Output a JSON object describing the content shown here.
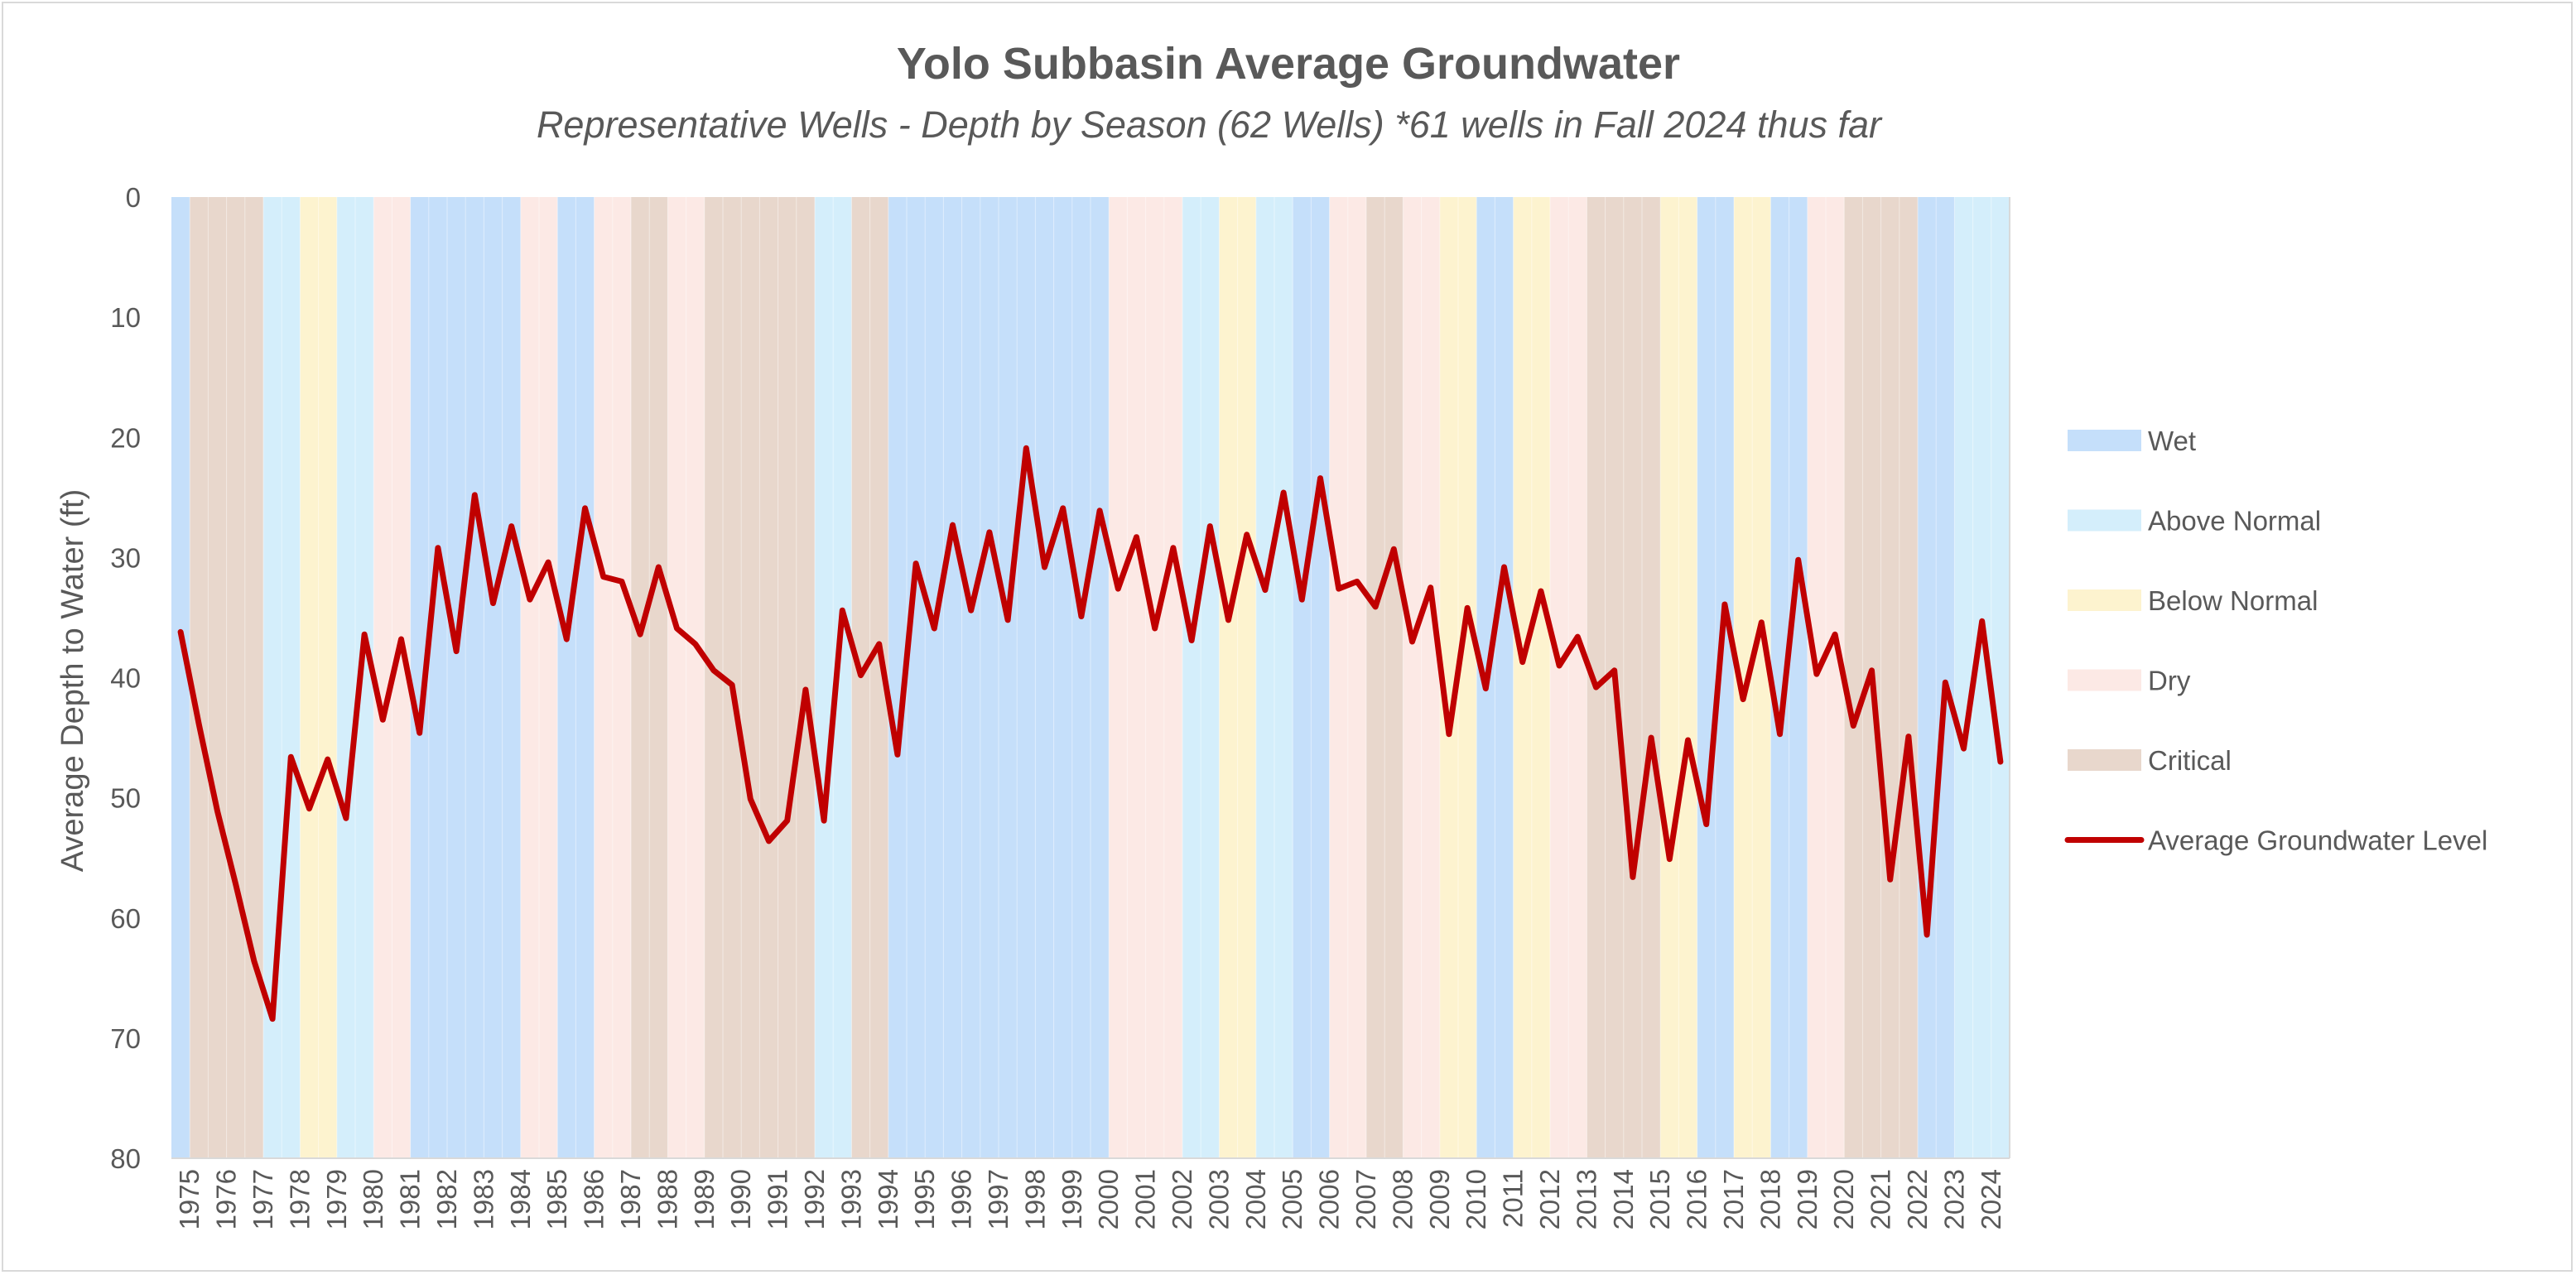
{
  "chart_data": {
    "type": "line",
    "title": "Yolo Subbasin Average Groundwater",
    "subtitle": "Representative Wells - Depth by Season (62 Wells) *61 wells in Fall 2024 thus far",
    "xlabel": "",
    "ylabel": "Average Depth to Water (ft)",
    "ylim": [
      0,
      80
    ],
    "y_inverted": true,
    "y_ticks": [
      0,
      10,
      20,
      30,
      40,
      50,
      60,
      70,
      80
    ],
    "x_tick_labels": [
      "1975",
      "1976",
      "1977",
      "1978",
      "1979",
      "1980",
      "1981",
      "1982",
      "1983",
      "1984",
      "1985",
      "1986",
      "1987",
      "1988",
      "1989",
      "1990",
      "1991",
      "1992",
      "1993",
      "1994",
      "1995",
      "1996",
      "1997",
      "1998",
      "1999",
      "2000",
      "2001",
      "2002",
      "2003",
      "2004",
      "2005",
      "2006",
      "2007",
      "2008",
      "2009",
      "2010",
      "2011",
      "2012",
      "2013",
      "2014",
      "2015",
      "2016",
      "2017",
      "2018",
      "2019",
      "2020",
      "2021",
      "2022",
      "2023",
      "2024"
    ],
    "grid": false,
    "legend_position": "right",
    "water_year_types": {
      "legend": [
        {
          "key": "W",
          "label": "Wet",
          "color": "#c5dffa"
        },
        {
          "key": "AN",
          "label": "Above Normal",
          "color": "#d4eefb"
        },
        {
          "key": "BN",
          "label": "Below Normal",
          "color": "#fdf3cf"
        },
        {
          "key": "D",
          "label": "Dry",
          "color": "#fce9e5"
        },
        {
          "key": "C",
          "label": "Critical",
          "color": "#e8d7cc"
        }
      ],
      "half_year_bands": [
        "W",
        "C",
        "C",
        "C",
        "C",
        "AN",
        "AN",
        "BN",
        "BN",
        "AN",
        "AN",
        "D",
        "D",
        "W",
        "W",
        "W",
        "W",
        "W",
        "W",
        "D",
        "D",
        "W",
        "W",
        "D",
        "D",
        "C",
        "C",
        "D",
        "D",
        "C",
        "C",
        "C",
        "C",
        "C",
        "C",
        "AN",
        "AN",
        "C",
        "C",
        "W",
        "W",
        "W",
        "W",
        "W",
        "W",
        "W",
        "W",
        "W",
        "W",
        "W",
        "W",
        "D",
        "D",
        "D",
        "D",
        "AN",
        "AN",
        "BN",
        "BN",
        "AN",
        "AN",
        "W",
        "W",
        "D",
        "D",
        "C",
        "C",
        "D",
        "D",
        "BN",
        "BN",
        "W",
        "W",
        "BN",
        "BN",
        "D",
        "D",
        "C",
        "C",
        "C",
        "C",
        "BN",
        "BN",
        "W",
        "W",
        "BN",
        "BN",
        "W",
        "W",
        "D",
        "D",
        "C",
        "C",
        "C",
        "C",
        "W",
        "W",
        "AN",
        "AN",
        "AN"
      ]
    },
    "series": [
      {
        "name": "Average Groundwater Level",
        "color": "#c00000",
        "x": [
          "1975 Spring",
          "1975 Fall",
          "1976 Spring",
          "1976 Fall",
          "1977 Spring",
          "1977 Fall",
          "1978 Spring",
          "1978 Fall",
          "1979 Spring",
          "1979 Fall",
          "1980 Spring",
          "1980 Fall",
          "1981 Spring",
          "1981 Fall",
          "1982 Spring",
          "1982 Fall",
          "1983 Spring",
          "1983 Fall",
          "1984 Spring",
          "1984 Fall",
          "1985 Spring",
          "1985 Fall",
          "1986 Spring",
          "1986 Fall",
          "1987 Spring",
          "1987 Fall",
          "1988 Spring",
          "1988 Fall",
          "1989 Spring",
          "1989 Fall",
          "1990 Spring",
          "1990 Fall",
          "1991 Spring",
          "1991 Fall",
          "1992 Spring",
          "1992 Fall",
          "1993 Spring",
          "1993 Fall",
          "1994 Spring",
          "1994 Fall",
          "1995 Spring",
          "1995 Fall",
          "1996 Spring",
          "1996 Fall",
          "1997 Spring",
          "1997 Fall",
          "1998 Spring",
          "1998 Fall",
          "1999 Spring",
          "1999 Fall",
          "2000 Spring",
          "2000 Fall",
          "2001 Spring",
          "2001 Fall",
          "2002 Spring",
          "2002 Fall",
          "2003 Spring",
          "2003 Fall",
          "2004 Spring",
          "2004 Fall",
          "2005 Spring",
          "2005 Fall",
          "2006 Spring",
          "2006 Fall",
          "2007 Spring",
          "2007 Fall",
          "2008 Spring",
          "2008 Fall",
          "2009 Spring",
          "2009 Fall",
          "2010 Spring",
          "2010 Fall",
          "2011 Spring",
          "2011 Fall",
          "2012 Spring",
          "2012 Fall",
          "2013 Spring",
          "2013 Fall",
          "2014 Spring",
          "2014 Fall",
          "2015 Spring",
          "2015 Fall",
          "2016 Spring",
          "2016 Fall",
          "2017 Spring",
          "2017 Fall",
          "2018 Spring",
          "2018 Fall",
          "2019 Spring",
          "2019 Fall",
          "2020 Spring",
          "2020 Fall",
          "2021 Spring",
          "2021 Fall",
          "2022 Spring",
          "2022 Fall",
          "2023 Spring",
          "2023 Fall",
          "2024 Spring",
          "2024 Fall"
        ],
        "values": [
          36.2,
          43.9,
          51.1,
          57.2,
          63.6,
          68.4,
          46.6,
          50.9,
          46.8,
          51.7,
          36.4,
          43.5,
          36.8,
          44.6,
          29.2,
          37.8,
          24.8,
          33.8,
          27.4,
          33.5,
          30.4,
          36.8,
          25.9,
          31.6,
          32.0,
          36.4,
          30.8,
          35.9,
          37.2,
          39.4,
          40.6,
          50.1,
          53.6,
          51.9,
          41.0,
          51.9,
          34.4,
          39.8,
          37.2,
          46.4,
          30.5,
          35.9,
          27.3,
          34.4,
          27.9,
          35.2,
          20.9,
          30.8,
          25.9,
          34.9,
          26.1,
          32.6,
          28.3,
          35.9,
          29.2,
          36.9,
          27.4,
          35.2,
          28.1,
          32.7,
          24.6,
          33.5,
          23.4,
          32.6,
          32.0,
          34.1,
          29.3,
          37.0,
          32.5,
          44.7,
          34.2,
          40.9,
          30.8,
          38.7,
          32.8,
          39.0,
          36.6,
          40.8,
          39.4,
          56.6,
          45.0,
          55.1,
          45.2,
          52.2,
          33.9,
          41.8,
          35.4,
          44.7,
          30.2,
          39.7,
          36.4,
          44.0,
          39.4,
          56.8,
          44.9,
          61.4,
          40.4,
          45.9,
          35.3,
          47.0
        ]
      }
    ]
  }
}
